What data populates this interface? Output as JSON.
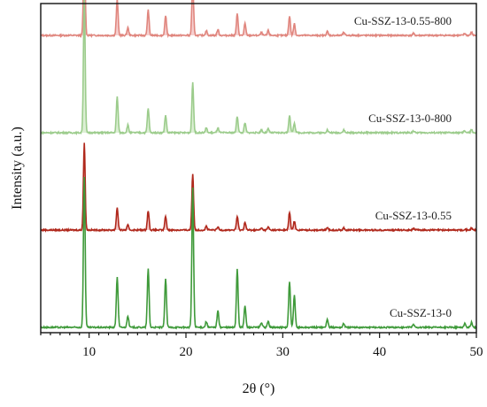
{
  "chart_data": {
    "type": "line",
    "title": "",
    "xlabel": "2θ (°)",
    "ylabel": "Intensity (a.u.)",
    "xlim": [
      5,
      50
    ],
    "xticks": [
      10,
      20,
      30,
      40,
      50
    ],
    "yticks_shown": false,
    "grid": false,
    "peak_positions": [
      9.5,
      12.9,
      14.0,
      16.1,
      17.9,
      20.7,
      22.1,
      23.3,
      25.3,
      26.1,
      27.8,
      28.5,
      30.7,
      31.2,
      34.6,
      36.3,
      43.5,
      48.8,
      49.5
    ],
    "series": [
      {
        "name": "Cu-SSZ-13-0.55-800",
        "color": "#e0867e",
        "fill": "#f6cfcf",
        "offset": 3.0,
        "peak_heights": [
          1.0,
          0.37,
          0.08,
          0.26,
          0.2,
          0.55,
          0.05,
          0.06,
          0.22,
          0.12,
          0.03,
          0.05,
          0.2,
          0.12,
          0.04,
          0.03,
          0.02,
          0.02,
          0.03
        ]
      },
      {
        "name": "Cu-SSZ-13-0-800",
        "color": "#9ccc8c",
        "fill": "#dcefd4",
        "offset": 2.0,
        "peak_heights": [
          1.4,
          0.37,
          0.08,
          0.25,
          0.18,
          0.52,
          0.05,
          0.05,
          0.17,
          0.1,
          0.03,
          0.04,
          0.18,
          0.1,
          0.03,
          0.03,
          0.02,
          0.02,
          0.03
        ]
      },
      {
        "name": "Cu-SSZ-13-0.55",
        "color": "#b0281c",
        "fill": "#f4c8c8",
        "offset": 1.0,
        "peak_heights": [
          0.9,
          0.23,
          0.05,
          0.2,
          0.14,
          0.58,
          0.04,
          0.03,
          0.14,
          0.08,
          0.02,
          0.03,
          0.18,
          0.09,
          0.02,
          0.02,
          0.02,
          0.01,
          0.02
        ]
      },
      {
        "name": "Cu-SSZ-13-0",
        "color": "#3f9a3a",
        "fill": "none",
        "offset": 0.0,
        "peak_heights": [
          1.55,
          0.52,
          0.12,
          0.6,
          0.5,
          1.43,
          0.06,
          0.17,
          0.6,
          0.22,
          0.05,
          0.06,
          0.47,
          0.33,
          0.08,
          0.04,
          0.03,
          0.04,
          0.05
        ]
      }
    ]
  }
}
